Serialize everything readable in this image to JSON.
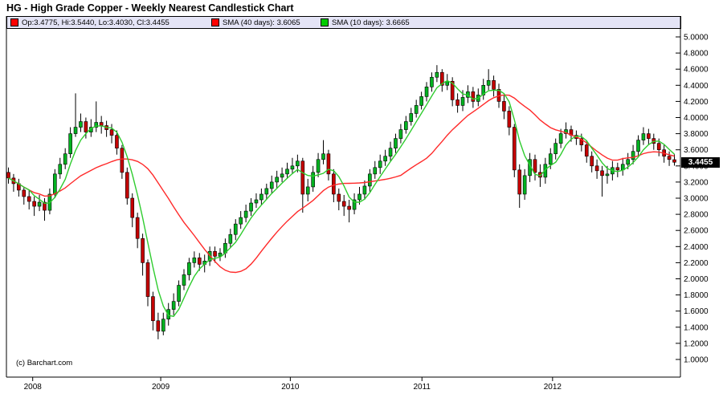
{
  "window": {
    "title": "HG - High Grade Copper - Weekly Nearest Candlestick Chart"
  },
  "legend": {
    "background": "#e4e4f6",
    "items": [
      {
        "swatch_color": "#ff0000",
        "label": "Op:3.4775, Hi:3.5440, Lo:3.4030, Cl:3.4455"
      },
      {
        "swatch_color": "#ff0000",
        "label": "SMA (40 days): 3.6065"
      },
      {
        "swatch_color": "#00cc00",
        "label": "SMA (10 days): 3.6665"
      }
    ]
  },
  "copyright": "(c) Barchart.com",
  "price_marker": {
    "value": "3.4455",
    "bg": "#000000",
    "fg": "#ffffff"
  },
  "colors": {
    "up_body": "#00b220",
    "down_body": "#c40000",
    "wick": "#000000",
    "sma_fast": "#2fcc2f",
    "sma_slow": "#ff2a2a",
    "axis": "#000000"
  },
  "chart_data": {
    "type": "candlestick",
    "title": "HG - High Grade Copper - Weekly Nearest Candlestick Chart",
    "interval": "weekly",
    "grid": false,
    "legend_position": "top",
    "ylim": [
      1.0,
      5.0
    ],
    "y_tick_step": 0.2,
    "y_tick_decimals": 4,
    "x_axis_years": [
      "2008",
      "2009",
      "2010",
      "2011",
      "2012"
    ],
    "year_tick_indices": [
      4.7,
      29.5,
      54.6,
      80.1,
      105.4
    ],
    "last_close": 3.4455,
    "last_candle": {
      "open": 3.4775,
      "high": 3.544,
      "low": 3.403,
      "close": 3.4455
    },
    "sma_series": [
      {
        "name": "SMA (40 days)",
        "value": 3.6065,
        "window_points": 20
      },
      {
        "name": "SMA (10 days)",
        "value": 3.6665,
        "window_points": 5
      }
    ],
    "candles_ohlc": [
      [
        3.32,
        3.38,
        3.18,
        3.25
      ],
      [
        3.25,
        3.3,
        3.08,
        3.18
      ],
      [
        3.18,
        3.24,
        3.02,
        3.1
      ],
      [
        3.1,
        3.14,
        2.92,
        3.02
      ],
      [
        3.02,
        3.1,
        2.86,
        2.96
      ],
      [
        2.96,
        3.02,
        2.78,
        2.9
      ],
      [
        2.9,
        3.04,
        2.84,
        2.95
      ],
      [
        2.95,
        3.0,
        2.72,
        2.85
      ],
      [
        2.85,
        3.12,
        2.8,
        3.05
      ],
      [
        3.05,
        3.36,
        3.0,
        3.3
      ],
      [
        3.3,
        3.5,
        3.24,
        3.42
      ],
      [
        3.42,
        3.62,
        3.36,
        3.55
      ],
      [
        3.55,
        3.88,
        3.5,
        3.8
      ],
      [
        3.8,
        4.3,
        3.76,
        3.88
      ],
      [
        3.88,
        4.05,
        3.82,
        3.95
      ],
      [
        3.95,
        4.0,
        3.74,
        3.82
      ],
      [
        3.82,
        3.98,
        3.76,
        3.88
      ],
      [
        3.88,
        4.2,
        3.82,
        3.94
      ],
      [
        3.94,
        4.02,
        3.8,
        3.9
      ],
      [
        3.9,
        3.96,
        3.76,
        3.85
      ],
      [
        3.85,
        3.92,
        3.68,
        3.78
      ],
      [
        3.78,
        3.84,
        3.54,
        3.62
      ],
      [
        3.62,
        3.66,
        3.24,
        3.32
      ],
      [
        3.32,
        3.38,
        2.92,
        3.0
      ],
      [
        3.0,
        3.06,
        2.64,
        2.76
      ],
      [
        2.76,
        2.82,
        2.38,
        2.5
      ],
      [
        2.5,
        2.56,
        2.04,
        2.2
      ],
      [
        2.2,
        2.24,
        1.66,
        1.78
      ],
      [
        1.78,
        1.84,
        1.36,
        1.48
      ],
      [
        1.48,
        1.58,
        1.25,
        1.35
      ],
      [
        1.35,
        1.58,
        1.3,
        1.5
      ],
      [
        1.5,
        1.7,
        1.42,
        1.62
      ],
      [
        1.62,
        1.82,
        1.55,
        1.72
      ],
      [
        1.72,
        1.98,
        1.66,
        1.92
      ],
      [
        1.92,
        2.12,
        1.86,
        2.05
      ],
      [
        2.05,
        2.26,
        1.98,
        2.2
      ],
      [
        2.2,
        2.34,
        2.14,
        2.26
      ],
      [
        2.26,
        2.32,
        2.1,
        2.18
      ],
      [
        2.18,
        2.3,
        2.08,
        2.22
      ],
      [
        2.22,
        2.4,
        2.16,
        2.34
      ],
      [
        2.34,
        2.4,
        2.2,
        2.28
      ],
      [
        2.28,
        2.38,
        2.22,
        2.32
      ],
      [
        2.32,
        2.5,
        2.26,
        2.44
      ],
      [
        2.44,
        2.62,
        2.38,
        2.55
      ],
      [
        2.55,
        2.74,
        2.48,
        2.68
      ],
      [
        2.68,
        2.84,
        2.62,
        2.76
      ],
      [
        2.76,
        2.92,
        2.7,
        2.84
      ],
      [
        2.84,
        3.0,
        2.78,
        2.94
      ],
      [
        2.94,
        3.06,
        2.88,
        2.98
      ],
      [
        2.98,
        3.12,
        2.92,
        3.05
      ],
      [
        3.05,
        3.18,
        2.98,
        3.12
      ],
      [
        3.12,
        3.28,
        3.06,
        3.2
      ],
      [
        3.2,
        3.34,
        3.12,
        3.26
      ],
      [
        3.26,
        3.38,
        3.2,
        3.3
      ],
      [
        3.3,
        3.44,
        3.24,
        3.36
      ],
      [
        3.36,
        3.5,
        3.3,
        3.4
      ],
      [
        3.4,
        3.54,
        3.32,
        3.46
      ],
      [
        3.46,
        3.5,
        2.82,
        3.05
      ],
      [
        3.05,
        3.24,
        2.96,
        3.14
      ],
      [
        3.14,
        3.4,
        3.08,
        3.32
      ],
      [
        3.32,
        3.56,
        3.26,
        3.48
      ],
      [
        3.48,
        3.72,
        3.42,
        3.55
      ],
      [
        3.55,
        3.6,
        3.22,
        3.3
      ],
      [
        3.3,
        3.36,
        2.95,
        3.05
      ],
      [
        3.05,
        3.12,
        2.85,
        2.96
      ],
      [
        2.96,
        3.04,
        2.78,
        2.9
      ],
      [
        2.9,
        2.98,
        2.7,
        2.86
      ],
      [
        2.86,
        3.06,
        2.8,
        2.98
      ],
      [
        2.98,
        3.14,
        2.92,
        3.05
      ],
      [
        3.05,
        3.22,
        2.98,
        3.15
      ],
      [
        3.15,
        3.36,
        3.08,
        3.3
      ],
      [
        3.3,
        3.46,
        3.24,
        3.38
      ],
      [
        3.38,
        3.54,
        3.3,
        3.46
      ],
      [
        3.46,
        3.6,
        3.4,
        3.52
      ],
      [
        3.52,
        3.7,
        3.46,
        3.62
      ],
      [
        3.62,
        3.8,
        3.56,
        3.74
      ],
      [
        3.74,
        3.92,
        3.68,
        3.85
      ],
      [
        3.85,
        4.02,
        3.8,
        3.95
      ],
      [
        3.95,
        4.12,
        3.9,
        4.05
      ],
      [
        4.05,
        4.22,
        4.0,
        4.15
      ],
      [
        4.15,
        4.32,
        4.1,
        4.26
      ],
      [
        4.26,
        4.44,
        4.2,
        4.38
      ],
      [
        4.38,
        4.56,
        4.32,
        4.5
      ],
      [
        4.5,
        4.65,
        4.44,
        4.56
      ],
      [
        4.56,
        4.6,
        4.32,
        4.4
      ],
      [
        4.4,
        4.54,
        4.34,
        4.45
      ],
      [
        4.45,
        4.5,
        4.14,
        4.22
      ],
      [
        4.22,
        4.3,
        4.06,
        4.15
      ],
      [
        4.15,
        4.34,
        4.08,
        4.25
      ],
      [
        4.25,
        4.4,
        4.18,
        4.32
      ],
      [
        4.32,
        4.38,
        4.12,
        4.2
      ],
      [
        4.2,
        4.36,
        4.14,
        4.28
      ],
      [
        4.28,
        4.48,
        4.22,
        4.4
      ],
      [
        4.4,
        4.6,
        4.34,
        4.46
      ],
      [
        4.46,
        4.52,
        4.26,
        4.35
      ],
      [
        4.35,
        4.42,
        4.12,
        4.2
      ],
      [
        4.2,
        4.28,
        3.98,
        4.08
      ],
      [
        4.08,
        4.14,
        3.78,
        3.88
      ],
      [
        3.88,
        3.92,
        3.26,
        3.35
      ],
      [
        3.35,
        3.42,
        2.88,
        3.05
      ],
      [
        3.05,
        3.36,
        2.98,
        3.28
      ],
      [
        3.28,
        3.56,
        3.2,
        3.48
      ],
      [
        3.48,
        3.54,
        3.22,
        3.32
      ],
      [
        3.32,
        3.42,
        3.14,
        3.26
      ],
      [
        3.26,
        3.5,
        3.18,
        3.42
      ],
      [
        3.42,
        3.62,
        3.36,
        3.55
      ],
      [
        3.55,
        3.74,
        3.48,
        3.68
      ],
      [
        3.68,
        3.86,
        3.62,
        3.8
      ],
      [
        3.8,
        3.94,
        3.74,
        3.85
      ],
      [
        3.85,
        3.9,
        3.7,
        3.78
      ],
      [
        3.78,
        3.84,
        3.66,
        3.74
      ],
      [
        3.74,
        3.8,
        3.58,
        3.66
      ],
      [
        3.66,
        3.72,
        3.44,
        3.52
      ],
      [
        3.52,
        3.58,
        3.32,
        3.4
      ],
      [
        3.4,
        3.48,
        3.24,
        3.34
      ],
      [
        3.34,
        3.4,
        3.02,
        3.28
      ],
      [
        3.28,
        3.4,
        3.18,
        3.3
      ],
      [
        3.3,
        3.46,
        3.22,
        3.38
      ],
      [
        3.38,
        3.44,
        3.26,
        3.35
      ],
      [
        3.35,
        3.5,
        3.28,
        3.42
      ],
      [
        3.42,
        3.56,
        3.36,
        3.48
      ],
      [
        3.48,
        3.66,
        3.42,
        3.58
      ],
      [
        3.58,
        3.78,
        3.52,
        3.72
      ],
      [
        3.72,
        3.88,
        3.66,
        3.8
      ],
      [
        3.8,
        3.86,
        3.66,
        3.74
      ],
      [
        3.74,
        3.8,
        3.6,
        3.68
      ],
      [
        3.68,
        3.74,
        3.52,
        3.6
      ],
      [
        3.6,
        3.66,
        3.44,
        3.52
      ],
      [
        3.52,
        3.58,
        3.4,
        3.48
      ],
      [
        3.4775,
        3.544,
        3.403,
        3.4455
      ]
    ]
  }
}
